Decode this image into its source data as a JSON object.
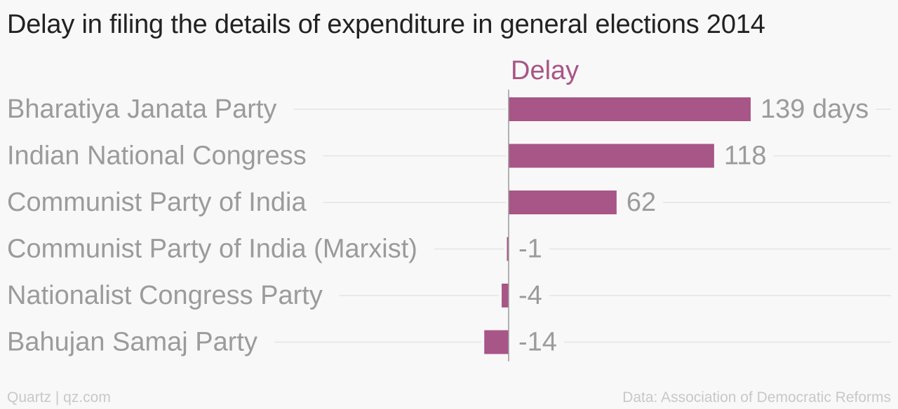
{
  "chart_data": {
    "type": "bar",
    "orientation": "horizontal",
    "title": "Delay in filing the details of expenditure in general elections 2014",
    "series_label": "Delay",
    "categories": [
      "Bharatiya Janata Party",
      "Indian National Congress",
      "Communist Party of India",
      "Communist Party of India (Marxist)",
      "Nationalist Congress Party",
      "Bahujan Samaj Party"
    ],
    "values": [
      139,
      118,
      62,
      -1,
      -4,
      -14
    ],
    "value_labels": [
      "139 days",
      "118",
      "62",
      "-1",
      "-4",
      "-14"
    ],
    "unit": "days",
    "bar_color": "#a85587",
    "series_label_color": "#a85587",
    "label_color": "#9b9b9b",
    "gridlines": true
  },
  "footer": {
    "source_left": "Quartz | qz.com",
    "source_right": "Data: Association of Democratic Reforms"
  }
}
